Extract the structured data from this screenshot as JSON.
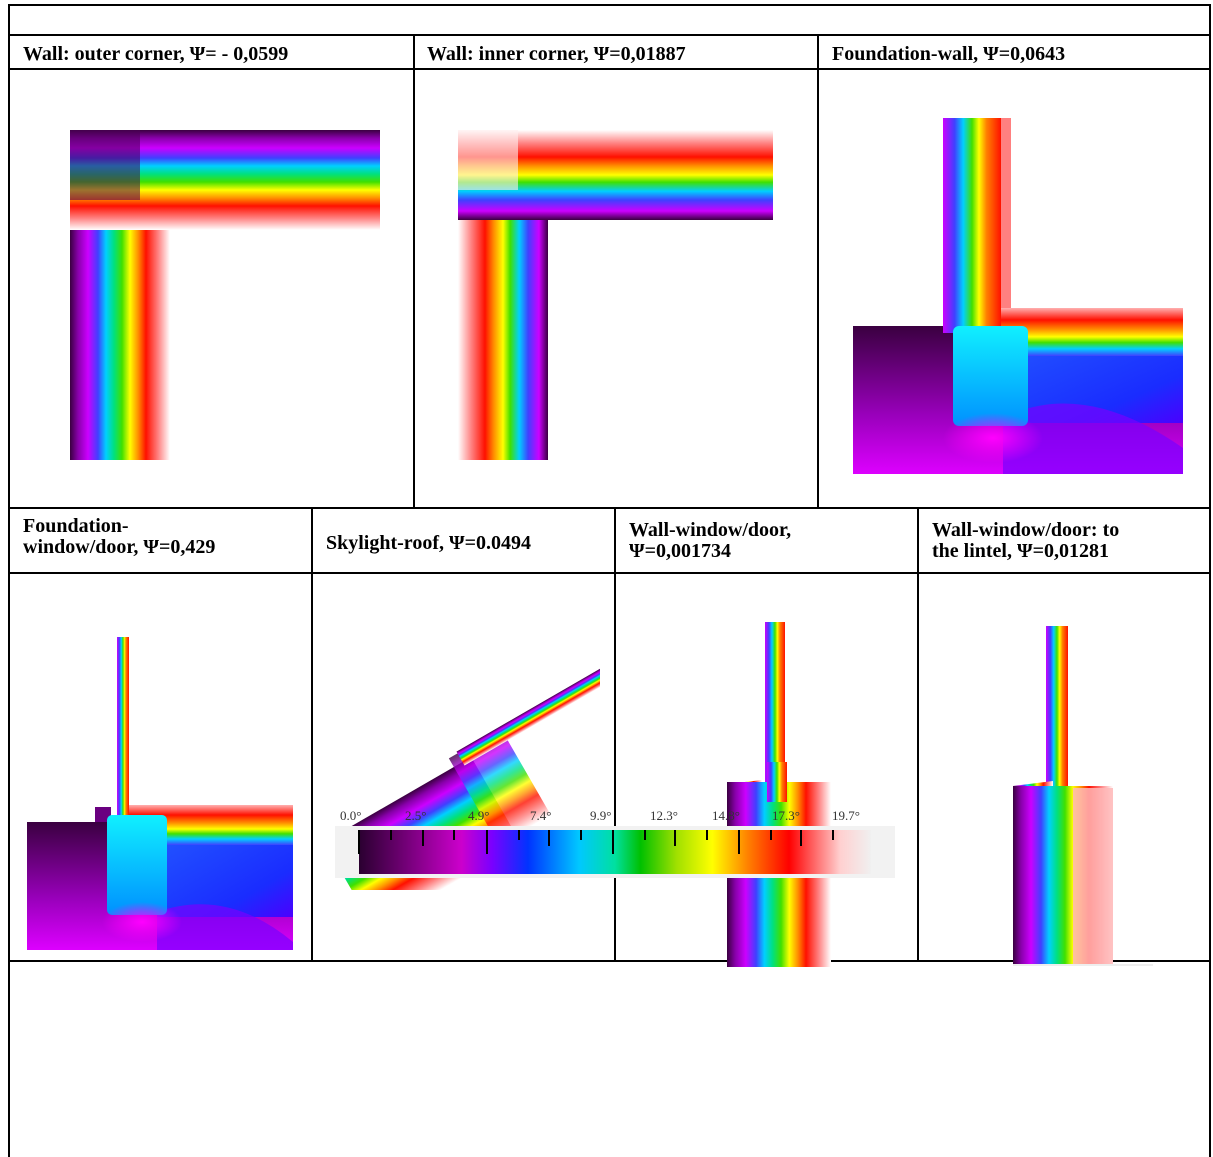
{
  "panels": [
    {
      "id": "outer_corner",
      "caption": "Wall: outer corner, Ψ= - 0,0599"
    },
    {
      "id": "inner_corner",
      "caption": "Wall: inner corner, Ψ=0,01887"
    },
    {
      "id": "foundation_wall",
      "caption": "Foundation-wall, Ψ=0,0643"
    },
    {
      "id": "foundation_window",
      "caption_line1": "Foundation-",
      "caption_line2": "window/door, Ψ=0,429"
    },
    {
      "id": "skylight_roof",
      "caption": "Skylight-roof, Ψ=0.0494"
    },
    {
      "id": "wall_window",
      "caption_line1": "Wall-window/door,",
      "caption_line2": "Ψ=0,001734"
    },
    {
      "id": "wall_window_lintel",
      "caption_line1": "Wall-window/door: to",
      "caption_line2": "the lintel, Ψ=0,01281"
    }
  ],
  "legend": {
    "ticks": [
      "0.0°",
      "2.5°",
      "4.9°",
      "7.4°",
      "9.9°",
      "12.3°",
      "14.8°",
      "17.3°",
      "19.7°"
    ],
    "colors": [
      "#2a0030",
      "#7a007e",
      "#cc00cc",
      "#7a00ff",
      "#0033ff",
      "#00c8ff",
      "#00e0a0",
      "#00c000",
      "#a0e000",
      "#ffff00",
      "#ff8000",
      "#ff0000",
      "#ffd0d0",
      "#f0f0f0"
    ]
  }
}
